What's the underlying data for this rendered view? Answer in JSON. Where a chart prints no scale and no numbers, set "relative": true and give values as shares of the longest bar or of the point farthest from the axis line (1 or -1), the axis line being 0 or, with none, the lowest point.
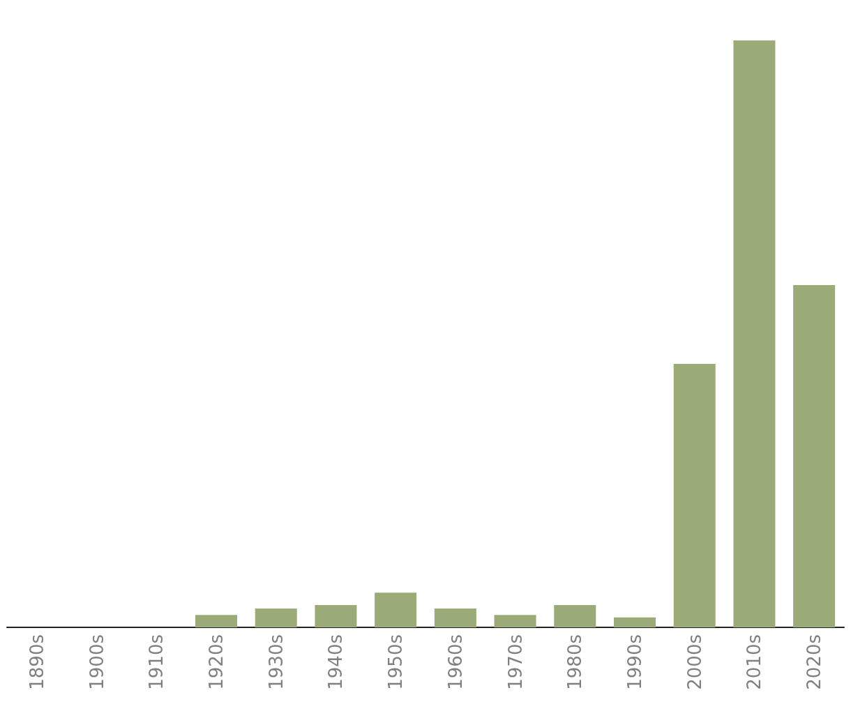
{
  "chart_data": {
    "type": "bar",
    "relative": true,
    "categories": [
      "1890s",
      "1900s",
      "1910s",
      "1920s",
      "1930s",
      "1940s",
      "1950s",
      "1960s",
      "1970s",
      "1980s",
      "1990s",
      "2000s",
      "2010s",
      "2020s"
    ],
    "values": [
      0,
      0,
      0,
      0.021,
      0.032,
      0.038,
      0.059,
      0.032,
      0.021,
      0.038,
      0.017,
      0.449,
      1,
      0.583
    ],
    "color": "#9aab77",
    "grid": false
  }
}
